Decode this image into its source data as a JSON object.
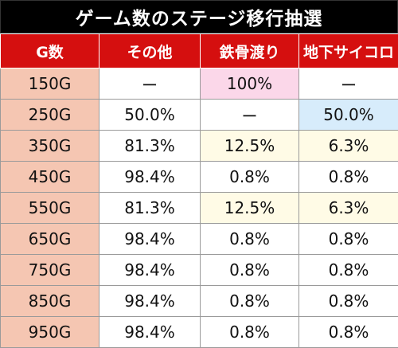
{
  "title": "ゲーム数のステージ移行抽選",
  "headers": [
    "G数",
    "その他",
    "鉄骨渡り",
    "地下サイコロ"
  ],
  "rows": [
    {
      "g": "150G",
      "other": "ー",
      "tekkotsu": "100%",
      "chika": "ー"
    },
    {
      "g": "250G",
      "other": "50.0%",
      "tekkotsu": "ー",
      "chika": "50.0%"
    },
    {
      "g": "350G",
      "other": "81.3%",
      "tekkotsu": "12.5%",
      "chika": "6.3%"
    },
    {
      "g": "450G",
      "other": "98.4%",
      "tekkotsu": "0.8%",
      "chika": "0.8%"
    },
    {
      "g": "550G",
      "other": "81.3%",
      "tekkotsu": "12.5%",
      "chika": "6.3%"
    },
    {
      "g": "650G",
      "other": "98.4%",
      "tekkotsu": "0.8%",
      "chika": "0.8%"
    },
    {
      "g": "750G",
      "other": "98.4%",
      "tekkotsu": "0.8%",
      "chika": "0.8%"
    },
    {
      "g": "850G",
      "other": "98.4%",
      "tekkotsu": "0.8%",
      "chika": "0.8%"
    },
    {
      "g": "950G",
      "other": "98.4%",
      "tekkotsu": "0.8%",
      "chika": "0.8%"
    }
  ],
  "colors": {
    "header_bg": "#d50f0f",
    "title_bg": "#000000",
    "g_cell_bg": "#f5c6b2",
    "highlight_pink": "#fbd7e9",
    "highlight_blue": "#d7ecfb",
    "highlight_yellow": "#fffbe6"
  }
}
